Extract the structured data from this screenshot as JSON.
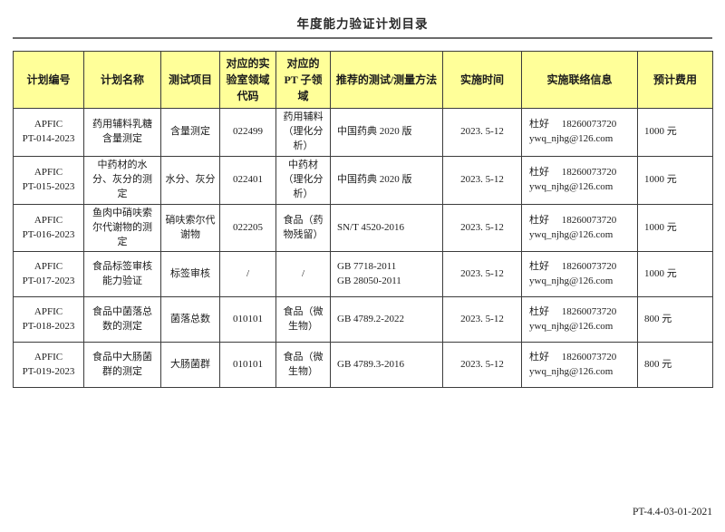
{
  "page": {
    "title": "年度能力验证计划目录",
    "footer_code": "PT-4.4-03-01-2021"
  },
  "colors": {
    "header_bg": "#ffff99",
    "grid_border": "#3c3c3c",
    "title_rule": "#6b6b6b"
  },
  "table": {
    "columns": [
      "计划编号",
      "计划名称",
      "测试项目",
      "对应的实验室领域代码",
      "对应的PT 子领域",
      "推荐的测试/测量方法",
      "实施时间",
      "实施联络信息",
      "预计费用"
    ],
    "rows": [
      {
        "cells": [
          [
            "APFIC",
            "PT-014-2023"
          ],
          "药用辅料乳糖含量测定",
          "含量测定",
          "022499",
          "药用辅料（理化分析）",
          "中国药典 2020 版",
          "2023. 5-12",
          [
            "杜好　 18260073720",
            "ywq_njhg@126.com"
          ],
          "1000 元"
        ]
      },
      {
        "cells": [
          [
            "APFIC",
            "PT-015-2023"
          ],
          "中药材的水分、灰分的测定",
          "水分、灰分",
          "022401",
          "中药材（理化分析）",
          "中国药典 2020 版",
          "2023. 5-12",
          [
            "杜好　 18260073720",
            "ywq_njhg@126.com"
          ],
          "1000 元"
        ]
      },
      {
        "cells": [
          [
            "APFIC",
            "PT-016-2023"
          ],
          "鱼肉中硝呋索尔代谢物的测定",
          "硝呋索尔代谢物",
          "022205",
          "食品（药物残留）",
          "SN/T 4520-2016",
          "2023. 5-12",
          [
            "杜好　 18260073720",
            "ywq_njhg@126.com"
          ],
          "1000 元"
        ]
      },
      {
        "cells": [
          [
            "APFIC",
            "PT-017-2023"
          ],
          "食品标签审核能力验证",
          "标签审核",
          "/",
          "/",
          [
            "GB 7718-2011",
            "GB 28050-2011"
          ],
          "2023. 5-12",
          [
            "杜好　 18260073720",
            "ywq_njhg@126.com"
          ],
          "1000 元"
        ]
      },
      {
        "cells": [
          [
            "APFIC",
            "PT-018-2023"
          ],
          "食品中菌落总数的测定",
          "菌落总数",
          "010101",
          "食品（微生物）",
          "GB 4789.2-2022",
          "2023. 5-12",
          [
            "杜好　 18260073720",
            "ywq_njhg@126.com"
          ],
          "800 元"
        ]
      },
      {
        "cells": [
          [
            "APFIC",
            "PT-019-2023"
          ],
          "食品中大肠菌群的测定",
          "大肠菌群",
          "010101",
          "食品（微生物）",
          "GB 4789.3-2016",
          "2023. 5-12",
          [
            "杜好　 18260073720",
            "ywq_njhg@126.com"
          ],
          "800 元"
        ]
      }
    ]
  }
}
